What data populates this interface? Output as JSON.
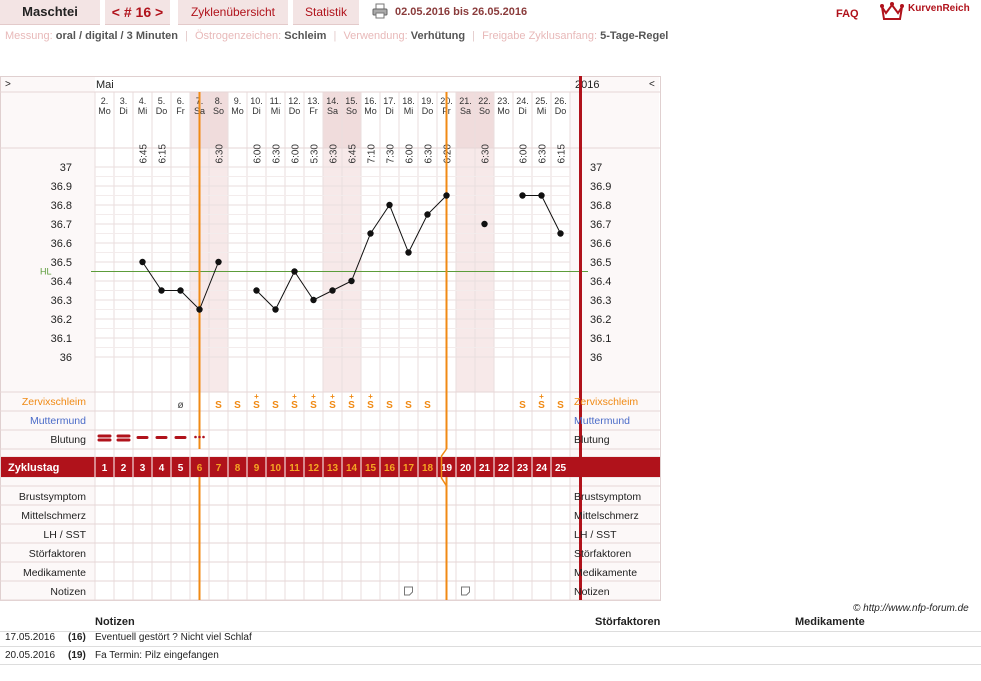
{
  "nav": {
    "username": "Maschtei",
    "cycle_label": "< # 16 >",
    "overview_label": "Zyklenübersicht",
    "stats_label": "Statistik",
    "date_range": "02.05.2016 bis 26.05.2016",
    "faq_label": "FAQ",
    "logo_text": "KurvenReich"
  },
  "info": {
    "measure_label": "Messung:",
    "measure_value": "oral / digital / 3 Minuten",
    "estrogen_label": "Östrogenzeichen:",
    "estrogen_value": "Schleim",
    "usage_label": "Verwendung:",
    "usage_value": "Verhütung",
    "release_label": "Freigabe Zyklusanfang:",
    "release_value": "5-Tage-Regel"
  },
  "chart_data": {
    "type": "line",
    "month_label": "Mai",
    "year_label": "2016",
    "nav_prev": ">",
    "nav_next": "<",
    "dates": [
      "2.",
      "3.",
      "4.",
      "5.",
      "6.",
      "7.",
      "8.",
      "9.",
      "10.",
      "11.",
      "12.",
      "13.",
      "14.",
      "15.",
      "16.",
      "17.",
      "18.",
      "19.",
      "20.",
      "21.",
      "22.",
      "23.",
      "24.",
      "25.",
      "26."
    ],
    "weekdays": [
      "Mo",
      "Di",
      "Mi",
      "Do",
      "Fr",
      "Sa",
      "So",
      "Mo",
      "Di",
      "Mi",
      "Do",
      "Fr",
      "Sa",
      "So",
      "Mo",
      "Di",
      "Mi",
      "Do",
      "Fr",
      "Sa",
      "So",
      "Mo",
      "Di",
      "Mi",
      "Do"
    ],
    "weekend_days": [
      6,
      7,
      13,
      14,
      20,
      21
    ],
    "times": [
      "",
      "",
      "6:45",
      "6:15",
      "",
      "",
      "6:30",
      "",
      "6:00",
      "6:30",
      "6:00",
      "5:30",
      "6:30",
      "6:45",
      "7:10",
      "7:30",
      "6:00",
      "6:30",
      "6:20",
      "",
      "6:30",
      "",
      "6:00",
      "6:30",
      "6:15"
    ],
    "temperatures": [
      null,
      null,
      36.5,
      36.35,
      36.35,
      36.25,
      36.5,
      null,
      36.35,
      36.25,
      36.45,
      36.3,
      36.35,
      36.4,
      36.65,
      36.8,
      36.55,
      36.75,
      36.85,
      null,
      36.7,
      null,
      36.85,
      36.85,
      36.65
    ],
    "connect_segments": [
      [
        3,
        7
      ],
      [
        9,
        19
      ],
      [
        23,
        25
      ]
    ],
    "y_ticks": [
      "37",
      "36.9",
      "36.8",
      "36.7",
      "36.6",
      "36.5",
      "36.4",
      "36.3",
      "36.2",
      "36.1",
      "36"
    ],
    "ylim": [
      35.95,
      37.05
    ],
    "hl_label": "HL",
    "hl_value": 36.45,
    "vertical_lines": [
      5.5,
      18.5
    ],
    "end_line": 25.5,
    "mucus": [
      "",
      "",
      "",
      "",
      "ø",
      "",
      "S",
      "S",
      "S+",
      "S",
      "S+",
      "S+",
      "S+",
      "S+",
      "S+",
      "S",
      "S",
      "S",
      "",
      "",
      "",
      "",
      "S",
      "S+",
      "S"
    ],
    "bleeding": [
      3,
      3,
      2,
      2,
      2,
      1,
      0,
      0,
      0,
      0,
      0,
      0,
      0,
      0,
      0,
      0,
      0,
      0,
      0,
      0,
      0,
      0,
      0,
      0,
      0
    ],
    "cycle_days": [
      "1",
      "2",
      "3",
      "4",
      "5",
      "6",
      "7",
      "8",
      "9",
      "10",
      "11",
      "12",
      "13",
      "14",
      "15",
      "16",
      "17",
      "18",
      "19",
      "20",
      "21",
      "22",
      "23",
      "24",
      "25"
    ],
    "row_labels": {
      "mucus": "Zervixschleim",
      "cervix": "Muttermund",
      "bleeding": "Blutung",
      "cycleday": "Zyklustag",
      "breast": "Brustsymptom",
      "midpain": "Mittelschmerz",
      "lh": "LH / SST",
      "disturb": "Störfaktoren",
      "meds": "Medikamente",
      "notes": "Notizen"
    },
    "note_days": [
      16,
      19
    ]
  },
  "copyright": "© http://www.nfp-forum.de",
  "notes_table": {
    "headers": {
      "notes": "Notizen",
      "disturb": "Störfaktoren",
      "meds": "Medikamente"
    },
    "rows": [
      {
        "date": "17.05.2016",
        "day": "(16)",
        "text": "Eventuell gestört ? Nicht viel Schlaf"
      },
      {
        "date": "20.05.2016",
        "day": "(19)",
        "text": "Fa Termin: Pilz eingefangen"
      }
    ]
  },
  "colors": {
    "accent": "#b0121b",
    "orange": "#f08a14",
    "hl": "#5c9c3a",
    "blue": "#4a6bc8"
  }
}
